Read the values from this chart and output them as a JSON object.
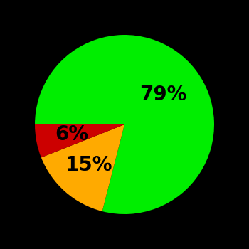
{
  "slices": [
    79,
    15,
    6
  ],
  "colors": [
    "#00ee00",
    "#ffaa00",
    "#cc0000"
  ],
  "labels": [
    "79%",
    "15%",
    "6%"
  ],
  "label_colors": [
    "black",
    "black",
    "black"
  ],
  "background_color": "#000000",
  "startangle": 180,
  "label_radii": [
    0.55,
    0.6,
    0.6
  ],
  "label_fontsize": 20,
  "label_fontweight": "bold"
}
